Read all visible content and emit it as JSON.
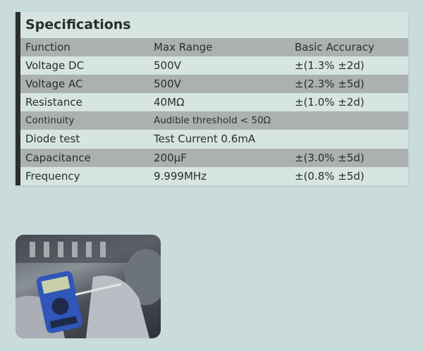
{
  "title": "Specifications",
  "columns": [
    "Function",
    "Max Range",
    "Basic Accuracy"
  ],
  "rows": [
    {
      "function": "Voltage DC",
      "range": "500V",
      "accuracy": "±(1.3% ±2d)"
    },
    {
      "function": "Voltage AC",
      "range": "500V",
      "accuracy": "±(2.3% ±5d)"
    },
    {
      "function": "Resistance",
      "range": "40MΩ",
      "accuracy": "±(1.0% ±2d)"
    },
    {
      "function": "Continuity",
      "range": "Audible threshold < 50Ω",
      "accuracy": ""
    },
    {
      "function": "Diode test",
      "range": "Test Current 0.6mA",
      "accuracy": ""
    },
    {
      "function": "Capacitance",
      "range": "200µF",
      "accuracy": "±(3.0% ±5d)"
    },
    {
      "function": "Frequency",
      "range": "9.999MHz",
      "accuracy": "±(0.8% ±5d)"
    }
  ],
  "colors": {
    "page": "#c9dcdb",
    "row_light": "#d6e4e2",
    "row_dark": "#abb0b0",
    "accent_bar": "#2c2f30"
  },
  "photo": {
    "subject": "multimeter-in-use-photo"
  }
}
